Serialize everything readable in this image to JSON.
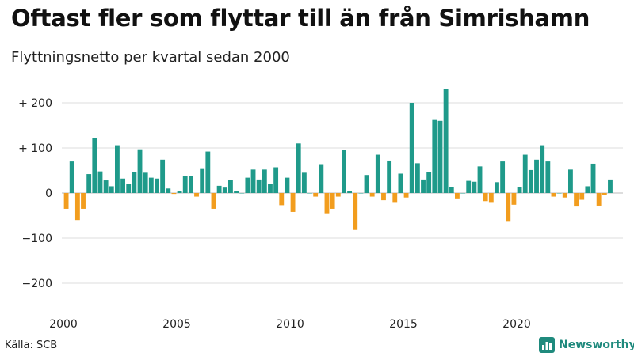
{
  "title": "Oftast fler som flyttar till än från Simrishamn",
  "subtitle": "Flyttningsnetto per kvartal sedan 2000",
  "source": "Källa: SCB",
  "brand": "Newsworthy",
  "colors": {
    "positive": "#1f9a8a",
    "negative": "#f29d1e",
    "grid": "#dddddd",
    "brand": "#1f8a7d"
  },
  "chart_data": {
    "type": "bar",
    "title": "Oftast fler som flyttar till än från Simrishamn",
    "subtitle": "Flyttningsnetto per kvartal sedan 2000",
    "xlabel": "",
    "ylabel": "",
    "ylim": [
      -240,
      240
    ],
    "xlim": [
      2000,
      2024.25
    ],
    "grid": true,
    "y_ticks": [
      200,
      100,
      0,
      -100,
      -200
    ],
    "y_tick_labels": [
      "+ 200",
      "+ 100",
      "0",
      "−100",
      "−200"
    ],
    "x_ticks": [
      2000,
      2005,
      2010,
      2015,
      2020
    ],
    "x_tick_labels": [
      "2000",
      "2005",
      "2010",
      "2015",
      "2020"
    ],
    "categories_start": "2000 Q1",
    "values": [
      -35,
      70,
      -60,
      -35,
      42,
      122,
      48,
      28,
      15,
      106,
      32,
      20,
      47,
      97,
      45,
      34,
      32,
      74,
      10,
      -2,
      4,
      38,
      37,
      -8,
      55,
      92,
      -35,
      16,
      12,
      29,
      5,
      0,
      34,
      52,
      30,
      52,
      20,
      57,
      -27,
      34,
      -42,
      110,
      45,
      0,
      -8,
      64,
      -45,
      -35,
      -8,
      95,
      5,
      -82,
      0,
      40,
      -8,
      85,
      -16,
      72,
      -20,
      43,
      -10,
      200,
      66,
      30,
      47,
      162,
      160,
      230,
      13,
      -12,
      0,
      27,
      25,
      59,
      -18,
      -20,
      24,
      70,
      -62,
      -26,
      14,
      85,
      51,
      74,
      106,
      70,
      -8,
      0,
      -10,
      52,
      -30,
      -15,
      15,
      65,
      -28,
      -5,
      30
    ]
  }
}
